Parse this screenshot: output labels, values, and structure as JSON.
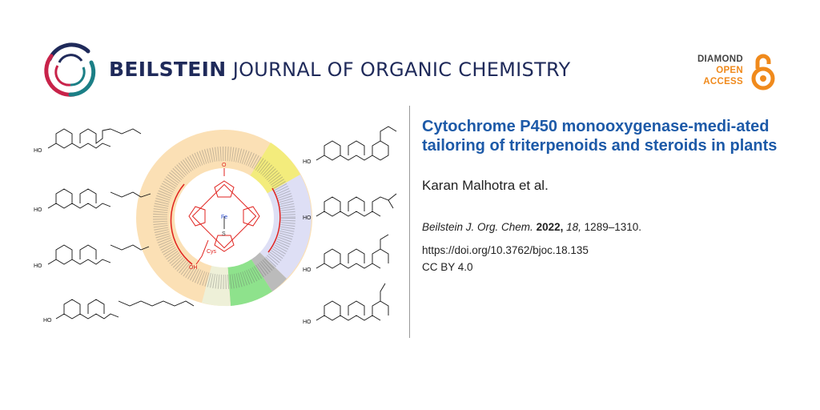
{
  "header": {
    "journal_bold": "BEILSTEIN",
    "journal_rest": "JOURNAL OF ORGANIC CHEMISTRY",
    "badge": {
      "line1": "DIAMOND",
      "line2": "OPEN",
      "line3": "ACCESS",
      "icon": "open-lock-icon"
    }
  },
  "article": {
    "title": "Cytochrome P450 monooxygenase-medi-ated tailoring of triterpenoids and steroids in plants",
    "authors": "Karan Malhotra et al.",
    "citation": {
      "journal": "Beilstein J. Org. Chem.",
      "year": "2022,",
      "volume": "18,",
      "pages": "1289–1310."
    },
    "doi": "https://doi.org/10.3762/bjoc.18.135",
    "license": "CC BY 4.0"
  },
  "figure": {
    "labels": {
      "fe": "Fe",
      "cys": "Cys",
      "oh": "OH",
      "s": "S",
      "o": "O",
      "h": "H",
      "ho": "HO"
    }
  },
  "colors": {
    "navy": "#1f2a5a",
    "title_blue": "#1d5aa8",
    "oa_orange": "#f08a1c",
    "oa_gray": "#444444",
    "logo_red": "#c8234a",
    "logo_teal": "#1b7f86",
    "ring_orange": "#fbe0b5",
    "ring_lavender": "#dedff5",
    "ring_green": "#8ee28c",
    "ring_yellow": "#f3ec7c",
    "porphyrin_red": "#e0221e"
  }
}
